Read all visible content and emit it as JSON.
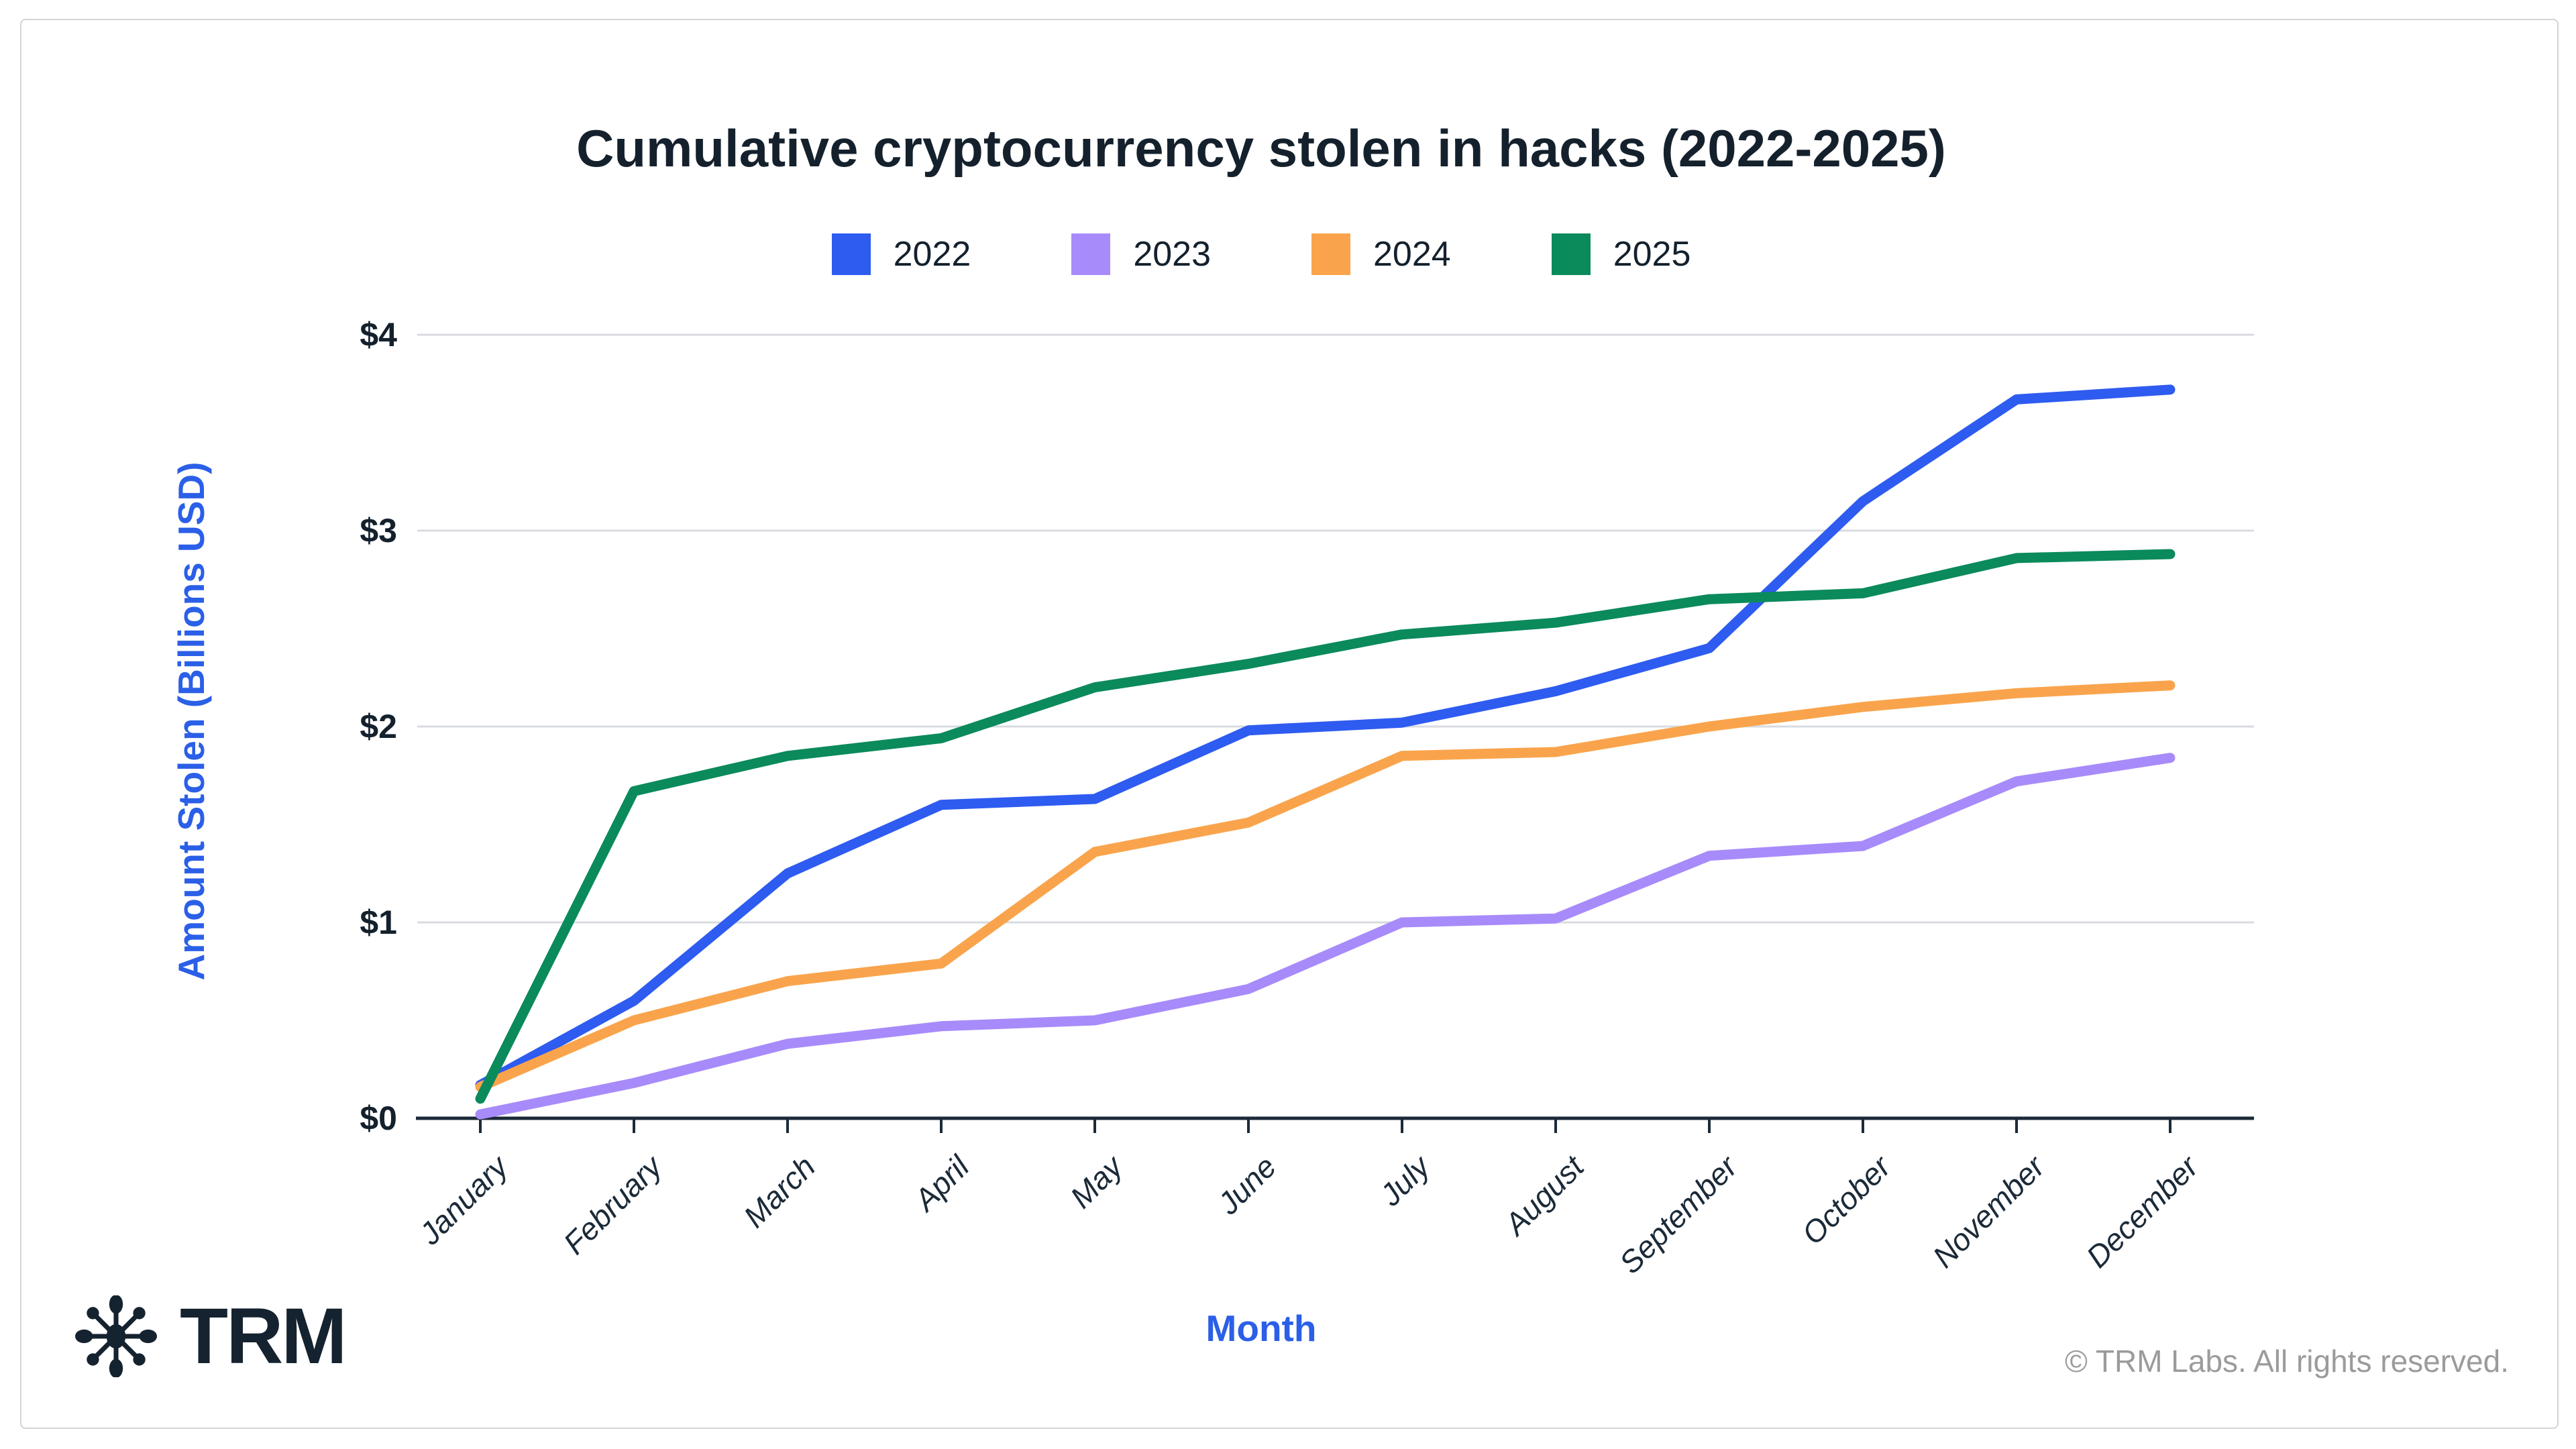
{
  "title": "Cumulative cryptocurrency stolen in hacks (2022-2025)",
  "legend": [
    {
      "label": "2022",
      "color": "#2e5bf0"
    },
    {
      "label": "2023",
      "color": "#a78bfa"
    },
    {
      "label": "2024",
      "color": "#f9a44c"
    },
    {
      "label": "2025",
      "color": "#0b8a5c"
    }
  ],
  "chart_data": {
    "type": "line",
    "x": [
      "January",
      "February",
      "March",
      "April",
      "May",
      "June",
      "July",
      "August",
      "September",
      "October",
      "November",
      "December"
    ],
    "xlabel": "Month",
    "ylabel": "Amount Stolen (Billions USD)",
    "ylim": [
      0,
      4
    ],
    "yticks": [
      {
        "value": 0,
        "label": "$0"
      },
      {
        "value": 1,
        "label": "$1"
      },
      {
        "value": 2,
        "label": "$2"
      },
      {
        "value": 3,
        "label": "$3"
      },
      {
        "value": 4,
        "label": "$4"
      }
    ],
    "grid": "horizontal",
    "legend_position": "top",
    "series": [
      {
        "name": "2022",
        "color": "#2e5bf0",
        "values": [
          0.17,
          0.6,
          1.25,
          1.6,
          1.63,
          1.98,
          2.02,
          2.18,
          2.4,
          3.15,
          3.67,
          3.72
        ]
      },
      {
        "name": "2023",
        "color": "#a78bfa",
        "values": [
          0.02,
          0.18,
          0.38,
          0.47,
          0.5,
          0.66,
          1.0,
          1.02,
          1.34,
          1.39,
          1.72,
          1.84
        ]
      },
      {
        "name": "2024",
        "color": "#f9a44c",
        "values": [
          0.16,
          0.5,
          0.7,
          0.79,
          1.36,
          1.51,
          1.85,
          1.87,
          2.0,
          2.1,
          2.17,
          2.21
        ]
      },
      {
        "name": "2025",
        "color": "#0b8a5c",
        "values": [
          0.1,
          1.67,
          1.85,
          1.94,
          2.2,
          2.32,
          2.47,
          2.53,
          2.65,
          2.68,
          2.86,
          2.88
        ]
      }
    ]
  },
  "axis_colors": {
    "grid": "#d8dbe0",
    "axis_line": "#1b2a38",
    "tick_label": "#14212d",
    "axis_title": "#2b5fe8"
  },
  "footer": {
    "brand": "TRM",
    "copyright": "© TRM Labs. All rights reserved."
  }
}
